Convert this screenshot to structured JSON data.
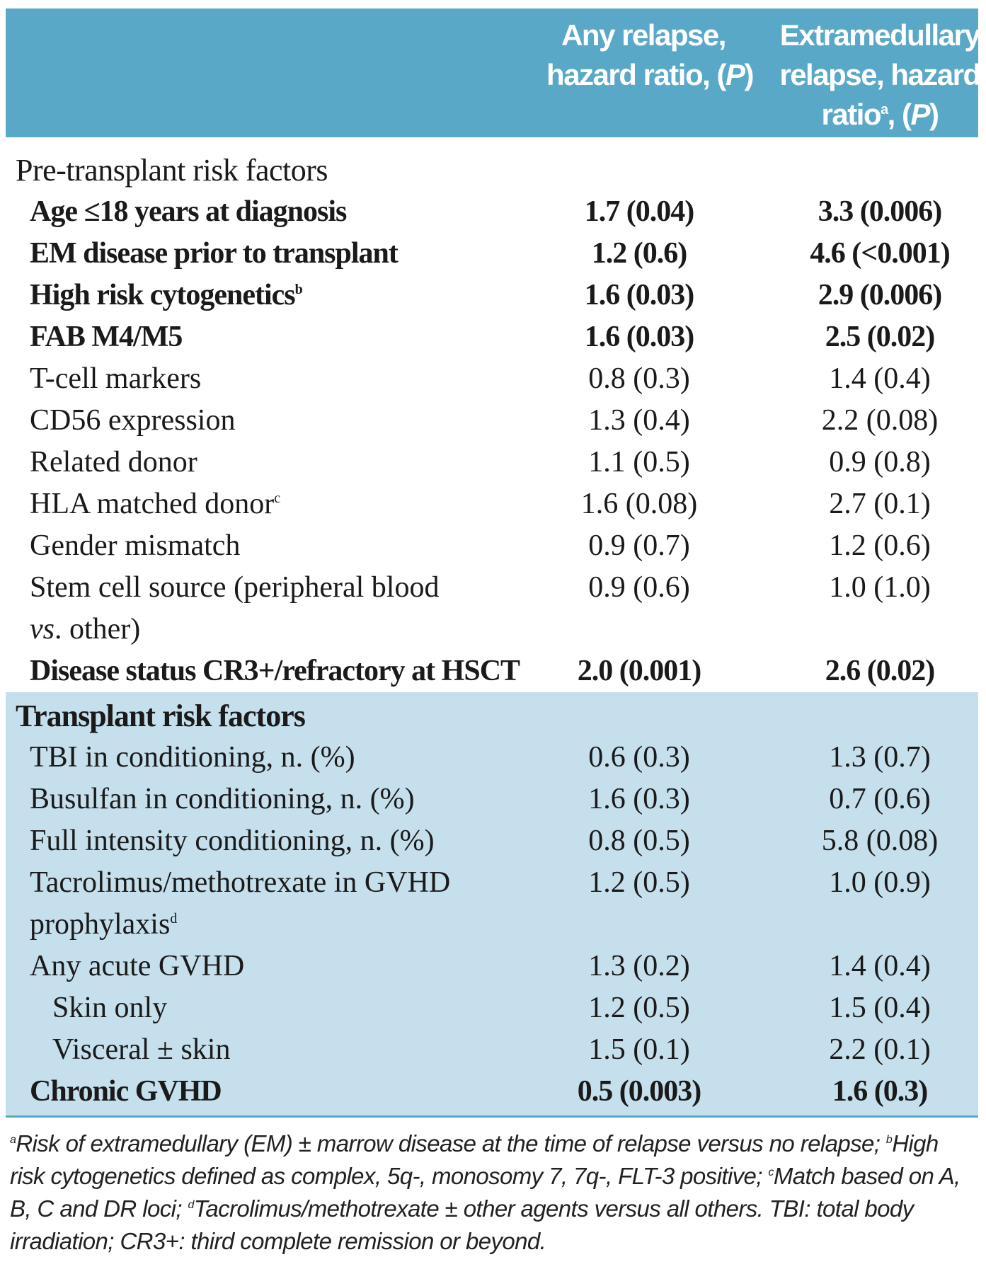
{
  "header": {
    "col1_line1": "Any relapse,",
    "col1_line2": "hazard ratio, (",
    "col1_p": "P",
    "col1_close": ")",
    "col2_line1": "Extramedullary",
    "col2_line2": "relapse, hazard",
    "col2_line3a": "ratio",
    "col2_sup": "a",
    "col2_line3b": ", (",
    "col2_p": "P",
    "col2_close": ")"
  },
  "pre_transplant": {
    "title": "Pre-transplant risk factors",
    "rows": [
      {
        "label": "Age ≤18 years at diagnosis",
        "v1": "1.7 (0.04)",
        "v2": "3.3 (0.006)"
      },
      {
        "label": "EM disease prior to transplant",
        "v1": "1.2 (0.6)",
        "v2": "4.6 (<0.001)"
      },
      {
        "label": "High risk cytogenetics",
        "sup": "b",
        "v1": "1.6 (0.03)",
        "v2": "2.9 (0.006)"
      },
      {
        "label": "FAB M4/M5",
        "v1": "1.6 (0.03)",
        "v2": "2.5 (0.02)"
      },
      {
        "label": "T-cell markers",
        "v1": "0.8 (0.3)",
        "v2": "1.4 (0.4)"
      },
      {
        "label": "CD56 expression",
        "v1": "1.3 (0.4)",
        "v2": "2.2 (0.08)"
      },
      {
        "label": "Related donor",
        "v1": "1.1 (0.5)",
        "v2": "0.9 (0.8)"
      },
      {
        "label": "HLA matched donor",
        "sup": "c",
        "v1": "1.6 (0.08)",
        "v2": "2.7 (0.1)"
      },
      {
        "label": "Gender mismatch",
        "v1": "0.9 (0.7)",
        "v2": "1.2 (0.6)"
      },
      {
        "label_a": "Stem cell source (peripheral blood",
        "label_vs": "vs",
        "label_b": ". other)",
        "v1": "0.9 (0.6)",
        "v2": "1.0 (1.0)"
      },
      {
        "label": "Disease status CR3+/refractory at HSCT",
        "v1": "2.0 (0.001)",
        "v2": "2.6 (0.02)"
      }
    ]
  },
  "transplant": {
    "title": "Transplant risk factors",
    "rows": [
      {
        "label": "TBI in conditioning, n. (%)",
        "v1": "0.6 (0.3)",
        "v2": "1.3 (0.7)"
      },
      {
        "label": "Busulfan in conditioning, n. (%)",
        "v1": "1.6 (0.3)",
        "v2": "0.7 (0.6)"
      },
      {
        "label": "Full intensity conditioning, n. (%)",
        "v1": "0.8 (0.5)",
        "v2": "5.8 (0.08)"
      },
      {
        "label_a": "Tacrolimus/methotrexate in GVHD",
        "label_b": "prophylaxis",
        "sup": "d",
        "v1": "1.2 (0.5)",
        "v2": "1.0 (0.9)"
      },
      {
        "label": "Any acute GVHD",
        "v1": "1.3 (0.2)",
        "v2": "1.4 (0.4)"
      },
      {
        "label": "Skin only",
        "v1": "1.2 (0.5)",
        "v2": "1.5 (0.4)"
      },
      {
        "label": "Visceral ± skin",
        "v1": "1.5 (0.1)",
        "v2": "2.2 (0.1)"
      },
      {
        "label": "Chronic GVHD",
        "v1": "0.5 (0.003)",
        "v2": "1.6 (0.3)"
      }
    ]
  },
  "footnotes": {
    "a_sup": "a",
    "a_text": "Risk of extramedullary (EM) ± marrow disease at the time of relapse versus no relapse;",
    "b_sup": "b",
    "b_text": "High risk cytogenetics defined as complex, 5q-, monosomy 7, 7q-, FLT-3 positive;",
    "c_sup": "c",
    "c_text": "Match based on A, B, C and DR loci;",
    "d_sup": "d",
    "d_text": "Tacrolimus/methotrexate ± other agents versus all others.",
    "abbrev": "TBI: total body irradiation; CR3+: third complete remission or beyond."
  },
  "colors": {
    "header_bg": "#5aa8c8",
    "transplant_bg": "#c6dfec",
    "text": "#1a1a1a"
  }
}
